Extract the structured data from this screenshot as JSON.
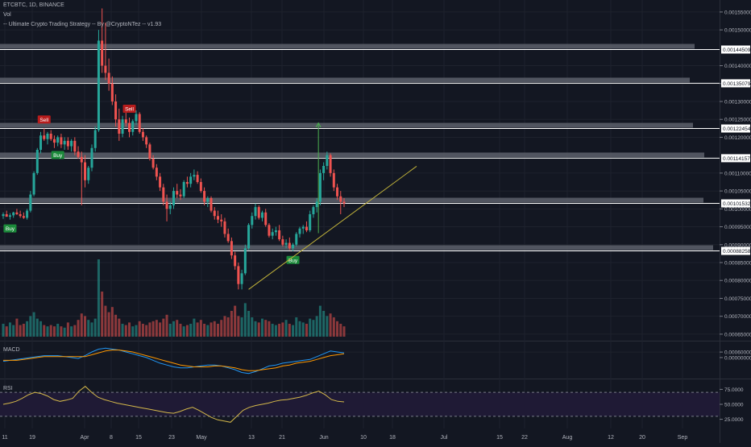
{
  "legend": {
    "symbol_line": "ETCBTC, 1D, BINANCE",
    "vol_label": "Vol",
    "strategy_label": "-- Ultimate Crypto Trading Strategy -- By @CryptoNTez -- v1.93"
  },
  "panes": {
    "macd_label": "MACD",
    "rsi_label": "RSI"
  },
  "price_axis": {
    "ticks": [
      "0.00155000",
      "0.00150000",
      "0.00140000",
      "0.00135000",
      "0.00130000",
      "0.00125000",
      "0.00120000",
      "0.00110000",
      "0.00105000",
      "0.00100000",
      "0.00095000",
      "0.00090000",
      "0.00085000",
      "0.00080000",
      "0.00075000",
      "0.00070000",
      "0.00065000",
      "0.00060000"
    ],
    "highlighted_levels": [
      "0.00144509",
      "0.00135079",
      "0.00122454",
      "0.00114157",
      "0.00101532",
      "0.00088258"
    ]
  },
  "macd_axis": {
    "ticks": [
      "0.00000000"
    ]
  },
  "rsi_axis": {
    "ticks": [
      "75.0000",
      "50.0000",
      "25.0000"
    ]
  },
  "time_axis": {
    "ticks": [
      "11",
      "19",
      "Apr",
      "8",
      "15",
      "23",
      "May",
      "13",
      "21",
      "Jun",
      "10",
      "18",
      "Jul",
      "15",
      "22",
      "Aug",
      "12",
      "20",
      "Sep"
    ]
  },
  "signals": {
    "buy": "Buy",
    "sell": "Sell"
  },
  "colors": {
    "background": "#131722",
    "grid": "#1e222d",
    "up": "#26a69a",
    "down": "#ef5350",
    "macd": "#2196f3",
    "signal": "#ff9800",
    "rsi": "#d4b84a",
    "rsi_band": "#1f1a35",
    "level_band": "#5d606b",
    "trend_line": "#c0b23a",
    "target_arrow": "#4caf50"
  },
  "chart_data": [
    {
      "type": "candlestick",
      "title": "ETCBTC, 1D, BINANCE",
      "ylim": [
        0.00058,
        0.00157
      ],
      "candles": [
        [
          0.00098,
          0.00099,
          0.000972,
          0.000985
        ],
        [
          0.000985,
          0.000995,
          0.000978,
          0.000978
        ],
        [
          0.000978,
          0.000988,
          0.00097,
          0.000982
        ],
        [
          0.000982,
          0.000992,
          0.000975,
          0.00099
        ],
        [
          0.00099,
          0.001,
          0.000983,
          0.000985
        ],
        [
          0.000985,
          0.000995,
          0.000975,
          0.00098
        ],
        [
          0.00098,
          0.00099,
          0.000972,
          0.000975
        ],
        [
          0.000975,
          0.001,
          0.00097,
          0.000995
        ],
        [
          0.000995,
          0.00105,
          0.00099,
          0.00104
        ],
        [
          0.00104,
          0.001105,
          0.001035,
          0.0011
        ],
        [
          0.0011,
          0.00117,
          0.001095,
          0.001165
        ],
        [
          0.001165,
          0.001215,
          0.001155,
          0.001205
        ],
        [
          0.001205,
          0.001225,
          0.00119,
          0.001195
        ],
        [
          0.001195,
          0.001215,
          0.00118,
          0.00121
        ],
        [
          0.00121,
          0.00122,
          0.00119,
          0.001195
        ],
        [
          0.001195,
          0.001205,
          0.00117,
          0.001185
        ],
        [
          0.001185,
          0.001205,
          0.001175,
          0.0012
        ],
        [
          0.0012,
          0.00121,
          0.00117,
          0.00118
        ],
        [
          0.00118,
          0.0012,
          0.001165,
          0.00119
        ],
        [
          0.00119,
          0.0012,
          0.001165,
          0.001175
        ],
        [
          0.001175,
          0.001195,
          0.00116,
          0.00119
        ],
        [
          0.00119,
          0.0012,
          0.00115,
          0.00116
        ],
        [
          0.00116,
          0.001175,
          0.00114,
          0.001145
        ],
        [
          0.001145,
          0.00116,
          0.00101,
          0.00113
        ],
        [
          0.00113,
          0.00115,
          0.00106,
          0.00108
        ],
        [
          0.00108,
          0.00112,
          0.00107,
          0.001115
        ],
        [
          0.001115,
          0.00118,
          0.001105,
          0.00117
        ],
        [
          0.00117,
          0.00123,
          0.00116,
          0.00122
        ],
        [
          0.00122,
          0.0015,
          0.001215,
          0.00147
        ],
        [
          0.00147,
          0.00156,
          0.00138,
          0.0014
        ],
        [
          0.0014,
          0.00152,
          0.00136,
          0.00138
        ],
        [
          0.00138,
          0.00142,
          0.00133,
          0.00135
        ],
        [
          0.00135,
          0.00137,
          0.00129,
          0.0013
        ],
        [
          0.0013,
          0.00132,
          0.00123,
          0.00125
        ],
        [
          0.00125,
          0.00128,
          0.00119,
          0.00121
        ],
        [
          0.00121,
          0.00126,
          0.0012,
          0.00125
        ],
        [
          0.00125,
          0.001275,
          0.00123,
          0.00124
        ],
        [
          0.00124,
          0.001255,
          0.0012,
          0.001215
        ],
        [
          0.001215,
          0.00125,
          0.001205,
          0.001245
        ],
        [
          0.001245,
          0.001275,
          0.001235,
          0.001265
        ],
        [
          0.001265,
          0.00127,
          0.00121,
          0.001215
        ],
        [
          0.001215,
          0.001225,
          0.00119,
          0.0012
        ],
        [
          0.0012,
          0.001205,
          0.00117,
          0.00118
        ],
        [
          0.00118,
          0.001185,
          0.001135,
          0.00114
        ],
        [
          0.00114,
          0.00115,
          0.00111,
          0.001115
        ],
        [
          0.001115,
          0.001125,
          0.00108,
          0.00109
        ],
        [
          0.00109,
          0.0011,
          0.00105,
          0.00106
        ],
        [
          0.00106,
          0.00107,
          0.00101,
          0.00102
        ],
        [
          0.00102,
          0.00104,
          0.000965,
          0.001
        ],
        [
          0.001,
          0.00102,
          0.000985,
          0.00101
        ],
        [
          0.00101,
          0.00106,
          0.001,
          0.00105
        ],
        [
          0.00105,
          0.00107,
          0.00103,
          0.00104
        ],
        [
          0.00104,
          0.001055,
          0.001025,
          0.001035
        ],
        [
          0.001035,
          0.00108,
          0.00103,
          0.001075
        ],
        [
          0.001075,
          0.00109,
          0.00106,
          0.00107
        ],
        [
          0.00107,
          0.0011,
          0.00106,
          0.00109
        ],
        [
          0.00109,
          0.00111,
          0.00108,
          0.001095
        ],
        [
          0.001095,
          0.001105,
          0.00107,
          0.001075
        ],
        [
          0.001075,
          0.001085,
          0.001045,
          0.00105
        ],
        [
          0.00105,
          0.00106,
          0.00101,
          0.00102
        ],
        [
          0.00102,
          0.001035,
          0.001005,
          0.00103
        ],
        [
          0.00103,
          0.001035,
          0.00099,
          0.000995
        ],
        [
          0.000995,
          0.001005,
          0.00097,
          0.00098
        ],
        [
          0.00098,
          0.000995,
          0.00096,
          0.00097
        ],
        [
          0.00097,
          0.000985,
          0.00095,
          0.000965
        ],
        [
          0.000965,
          0.000975,
          0.00092,
          0.00093
        ],
        [
          0.00093,
          0.000945,
          0.000905,
          0.00091
        ],
        [
          0.00091,
          0.00092,
          0.00086,
          0.00087
        ],
        [
          0.00087,
          0.00088,
          0.00083,
          0.00084
        ],
        [
          0.00084,
          0.00085,
          0.000775,
          0.00079
        ],
        [
          0.00079,
          0.00083,
          0.000775,
          0.00082
        ],
        [
          0.00082,
          0.0009,
          0.000815,
          0.00089
        ],
        [
          0.00089,
          0.00096,
          0.000885,
          0.000955
        ],
        [
          0.000955,
          0.00099,
          0.000945,
          0.00098
        ],
        [
          0.00098,
          0.001015,
          0.00097,
          0.001005
        ],
        [
          0.001005,
          0.00101,
          0.00097,
          0.000975
        ],
        [
          0.000975,
          0.000995,
          0.000965,
          0.00099
        ],
        [
          0.00099,
          0.001,
          0.00095,
          0.000955
        ],
        [
          0.000955,
          0.00096,
          0.00092,
          0.000925
        ],
        [
          0.000925,
          0.000945,
          0.000915,
          0.000935
        ],
        [
          0.000935,
          0.00095,
          0.000925,
          0.00094
        ],
        [
          0.00094,
          0.000955,
          0.00091,
          0.000915
        ],
        [
          0.000915,
          0.000925,
          0.000895,
          0.0009
        ],
        [
          0.0009,
          0.000915,
          0.00089,
          0.000905
        ],
        [
          0.000905,
          0.00092,
          0.000885,
          0.00089
        ],
        [
          0.00089,
          0.000905,
          0.000882,
          0.0009
        ],
        [
          0.0009,
          0.000935,
          0.000895,
          0.00093
        ],
        [
          0.00093,
          0.00095,
          0.00092,
          0.000945
        ],
        [
          0.000945,
          0.000955,
          0.00093,
          0.00095
        ],
        [
          0.00095,
          0.000965,
          0.000935,
          0.00094
        ],
        [
          0.00094,
          0.000995,
          0.000935,
          0.000985
        ],
        [
          0.000985,
          0.00101,
          0.000975,
          0.001005
        ],
        [
          0.001005,
          0.00103,
          0.00099,
          0.00102
        ],
        [
          0.00102,
          0.00111,
          0.00101,
          0.0011
        ],
        [
          0.0011,
          0.00113,
          0.00108,
          0.00112
        ],
        [
          0.00112,
          0.00116,
          0.00111,
          0.00115
        ],
        [
          0.00115,
          0.001155,
          0.00109,
          0.0011
        ],
        [
          0.0011,
          0.00111,
          0.00105,
          0.00106
        ],
        [
          0.00106,
          0.00107,
          0.001025,
          0.001035
        ],
        [
          0.001035,
          0.00105,
          0.000985,
          0.00102
        ],
        [
          0.00102,
          0.00103,
          0.001005,
          0.001015
        ]
      ],
      "volume": [
        1.0,
        0.8,
        1.1,
        0.9,
        1.4,
        0.9,
        1.0,
        1.2,
        1.6,
        1.9,
        1.4,
        1.2,
        0.9,
        0.8,
        0.9,
        0.8,
        1.0,
        0.8,
        0.7,
        1.1,
        0.8,
        0.9,
        1.3,
        1.8,
        1.6,
        1.3,
        1.1,
        1.4,
        6.0,
        3.5,
        2.4,
        1.9,
        2.3,
        1.7,
        1.4,
        1.0,
        0.9,
        1.1,
        0.8,
        0.9,
        1.2,
        1.0,
        0.9,
        1.1,
        1.2,
        1.3,
        1.1,
        1.4,
        1.7,
        1.0,
        1.2,
        1.3,
        1.0,
        0.8,
        0.9,
        1.0,
        1.4,
        1.1,
        1.3,
        1.0,
        0.9,
        1.1,
        1.2,
        1.0,
        1.3,
        1.6,
        1.5,
        2.0,
        2.4,
        1.6,
        1.5,
        2.6,
        2.0,
        1.5,
        1.2,
        1.1,
        1.4,
        1.3,
        1.2,
        1.0,
        0.9,
        1.0,
        1.1,
        1.3,
        1.0,
        0.9,
        1.5,
        1.2,
        1.1,
        1.0,
        1.4,
        1.3,
        1.6,
        2.4,
        2.0,
        1.6,
        1.8,
        1.5,
        1.2,
        1.0,
        0.8
      ],
      "signals": [
        {
          "label": "Buy",
          "at": 2
        },
        {
          "label": "Sell",
          "at": 12
        },
        {
          "label": "Buy",
          "at": 16
        },
        {
          "label": "Sell",
          "at": 37
        },
        {
          "label": "Buy",
          "at": 85
        }
      ]
    },
    {
      "type": "line",
      "title": "MACD",
      "series": [
        {
          "values": [
            -4e-06,
            -3e-06,
            -2e-06,
            -1e-06,
            0,
            1e-06,
            2e-06,
            2e-06,
            2e-06,
            1e-06,
            0,
            -1e-06,
            2e-06,
            6e-06,
            9e-06,
            1e-05,
            9e-06,
            8e-06,
            6e-06,
            4e-06,
            2e-06,
            0,
            -3e-06,
            -6e-06,
            -8e-06,
            -1e-05,
            -1.1e-05,
            -1.1e-05,
            -1e-05,
            -9e-06,
            -8e-06,
            -8e-06,
            -9e-06,
            -1.1e-05,
            -1.3e-05,
            -1.6e-05,
            -1.7e-05,
            -1.5e-05,
            -1.2e-05,
            -9e-06,
            -8e-06,
            -6e-06,
            -5e-06,
            -4e-06,
            -3e-06,
            -2e-06,
            1e-06,
            4e-06,
            7e-06,
            6e-06,
            5e-06
          ]
        },
        {
          "values": [
            -3e-06,
            -3e-06,
            -3e-06,
            -2e-06,
            -1e-06,
            0,
            1e-06,
            1e-06,
            1e-06,
            1e-06,
            1e-06,
            1e-06,
            1e-06,
            3e-06,
            5e-06,
            7e-06,
            8e-06,
            8e-06,
            7e-06,
            6e-06,
            4e-06,
            2e-06,
            0,
            -2e-06,
            -4e-06,
            -6e-06,
            -8e-06,
            -9e-06,
            -1e-05,
            -1e-05,
            -1e-05,
            -9e-06,
            -9e-06,
            -1e-05,
            -1.1e-05,
            -1.3e-05,
            -1.4e-05,
            -1.4e-05,
            -1.3e-05,
            -1.2e-05,
            -1.1e-05,
            -9e-06,
            -8e-06,
            -6e-06,
            -5e-06,
            -4e-06,
            -2e-06,
            0,
            2e-06,
            3e-06,
            4e-06
          ]
        }
      ]
    },
    {
      "type": "line",
      "title": "RSI",
      "ylim": [
        15,
        85
      ],
      "bands": [
        30,
        70
      ],
      "series": [
        {
          "values": [
            50,
            52,
            55,
            60,
            66,
            70,
            68,
            64,
            58,
            55,
            57,
            60,
            72,
            80,
            70,
            62,
            58,
            55,
            52,
            50,
            48,
            46,
            44,
            42,
            40,
            38,
            36,
            35,
            38,
            42,
            45,
            40,
            34,
            28,
            24,
            22,
            20,
            30,
            40,
            45,
            48,
            50,
            52,
            55,
            57,
            58,
            60,
            62,
            65,
            69,
            72,
            66,
            58,
            55,
            54
          ]
        }
      ]
    }
  ]
}
